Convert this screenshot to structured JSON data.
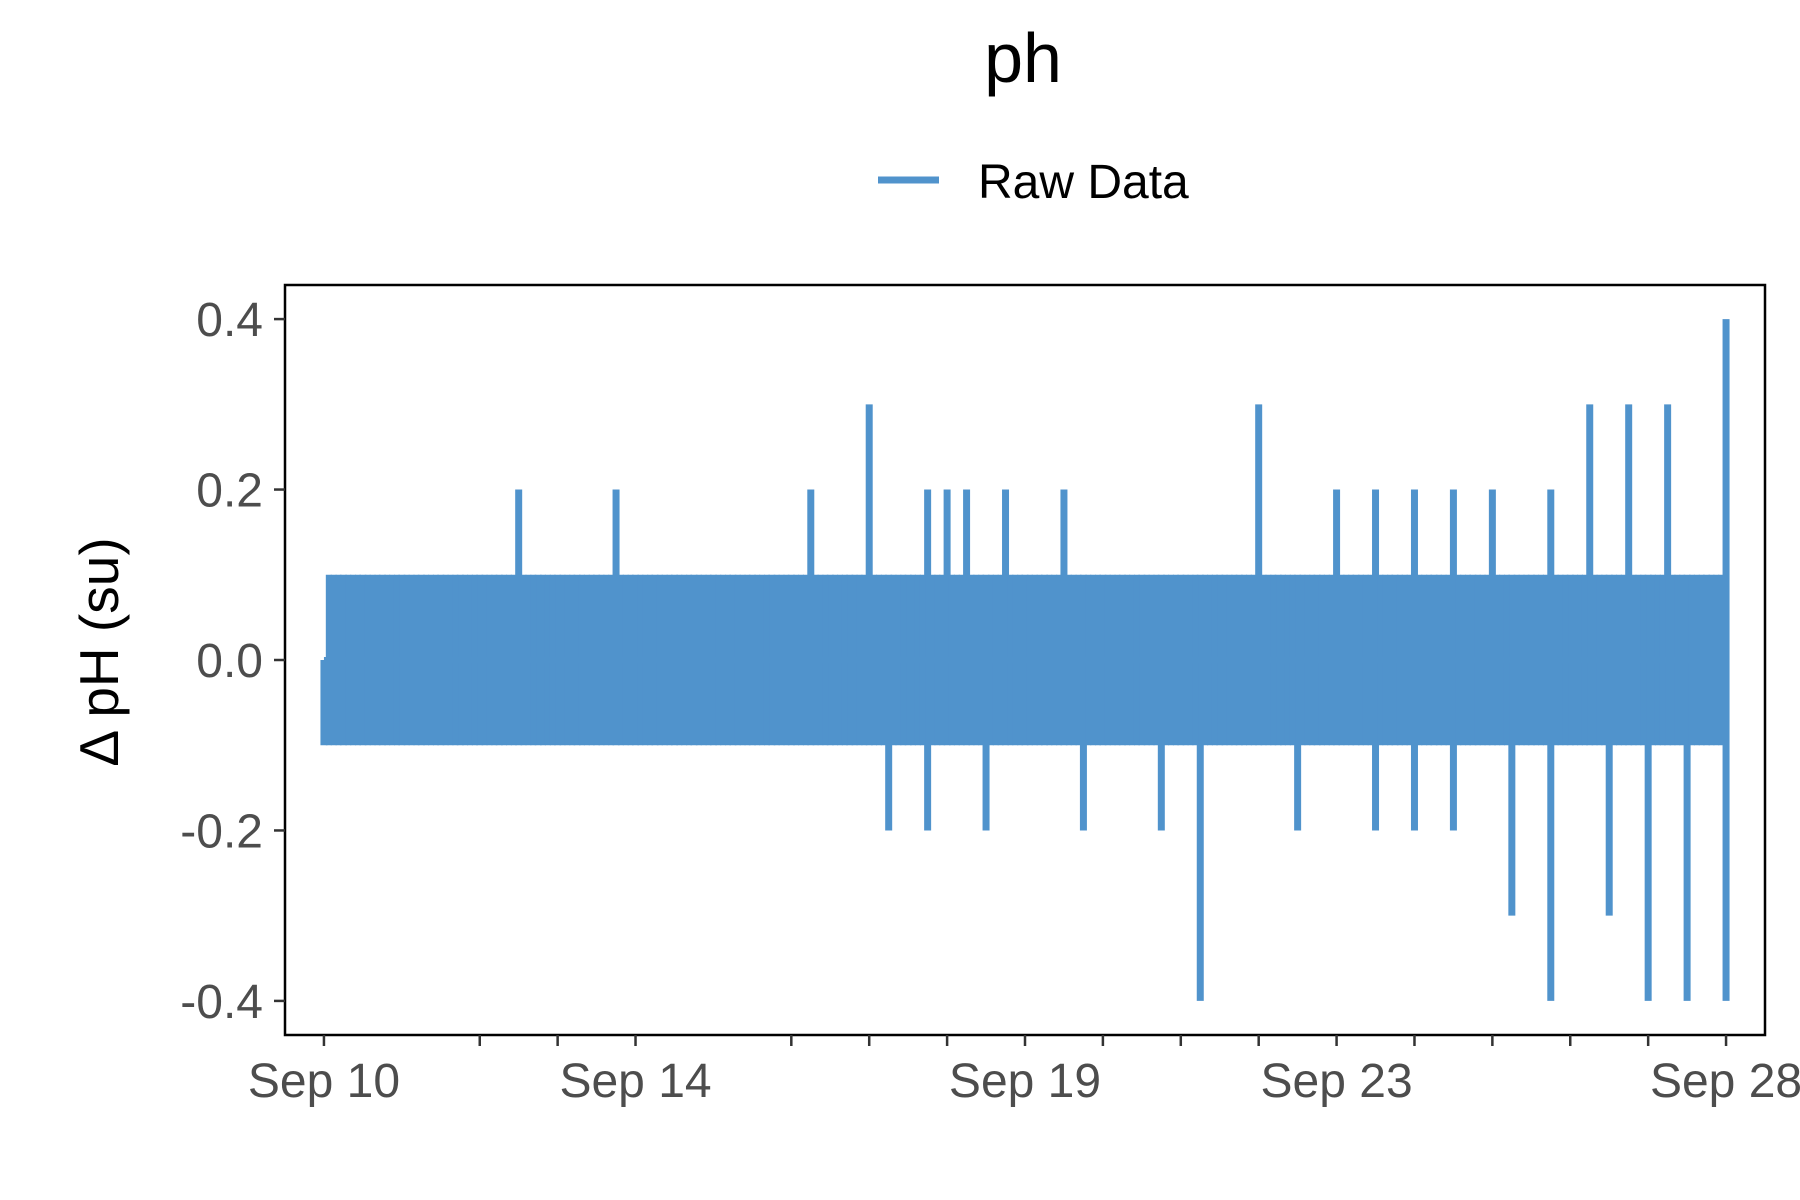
{
  "chart_data": {
    "type": "line",
    "title": "ph",
    "xlabel": "",
    "ylabel": "Δ pH (su)",
    "legend": {
      "placement": "top",
      "entries": [
        "Raw Data"
      ]
    },
    "grid": false,
    "x_scale": "date",
    "xlim": [
      "2019-09-09T12:00",
      "2019-09-28T12:00"
    ],
    "ylim": [
      -0.44,
      0.44
    ],
    "x_ticks": [
      {
        "date": "2019-09-10",
        "label": "Sep 10"
      },
      {
        "date": "2019-09-14",
        "label": "Sep 14"
      },
      {
        "date": "2019-09-19",
        "label": "Sep 19"
      },
      {
        "date": "2019-09-23",
        "label": "Sep 23"
      },
      {
        "date": "2019-09-28",
        "label": "Sep 28"
      }
    ],
    "x_minor_ticks": [
      "2019-09-12",
      "2019-09-13",
      "2019-09-16",
      "2019-09-17",
      "2019-09-18",
      "2019-09-20",
      "2019-09-21",
      "2019-09-22",
      "2019-09-24",
      "2019-09-25",
      "2019-09-26",
      "2019-09-27"
    ],
    "y_ticks": [
      0.4,
      0.2,
      0.0,
      -0.2,
      -0.4
    ],
    "y_tick_labels": [
      "0.4",
      "0.2",
      "0.0",
      "-0.2",
      "-0.4"
    ],
    "series": [
      {
        "name": "Raw Data",
        "color": "#5093cc",
        "x": [
          "2019-09-10T00:00",
          "2019-09-10T06:00",
          "2019-09-10T12:00",
          "2019-09-10T18:00",
          "2019-09-11T00:00",
          "2019-09-11T06:00",
          "2019-09-11T12:00",
          "2019-09-11T18:00",
          "2019-09-12T00:00",
          "2019-09-12T06:00",
          "2019-09-12T12:00",
          "2019-09-12T18:00",
          "2019-09-13T00:00",
          "2019-09-13T06:00",
          "2019-09-13T12:00",
          "2019-09-13T18:00",
          "2019-09-14T00:00",
          "2019-09-14T06:00",
          "2019-09-14T12:00",
          "2019-09-14T18:00",
          "2019-09-15T00:00",
          "2019-09-15T06:00",
          "2019-09-15T12:00",
          "2019-09-15T18:00",
          "2019-09-16T00:00",
          "2019-09-16T06:00",
          "2019-09-16T12:00",
          "2019-09-16T18:00",
          "2019-09-17T00:00",
          "2019-09-17T06:00",
          "2019-09-17T12:00",
          "2019-09-17T18:00",
          "2019-09-18T00:00",
          "2019-09-18T06:00",
          "2019-09-18T12:00",
          "2019-09-18T18:00",
          "2019-09-19T00:00",
          "2019-09-19T06:00",
          "2019-09-19T12:00",
          "2019-09-19T18:00",
          "2019-09-20T00:00",
          "2019-09-20T06:00",
          "2019-09-20T12:00",
          "2019-09-20T18:00",
          "2019-09-21T00:00",
          "2019-09-21T06:00",
          "2019-09-21T12:00",
          "2019-09-21T18:00",
          "2019-09-22T00:00",
          "2019-09-22T06:00",
          "2019-09-22T12:00",
          "2019-09-22T18:00",
          "2019-09-23T00:00",
          "2019-09-23T06:00",
          "2019-09-23T12:00",
          "2019-09-23T18:00",
          "2019-09-24T00:00",
          "2019-09-24T06:00",
          "2019-09-24T12:00",
          "2019-09-24T18:00",
          "2019-09-25T00:00",
          "2019-09-25T06:00",
          "2019-09-25T12:00",
          "2019-09-25T18:00",
          "2019-09-26T00:00",
          "2019-09-26T06:00",
          "2019-09-26T12:00",
          "2019-09-26T18:00",
          "2019-09-27T00:00",
          "2019-09-27T06:00",
          "2019-09-27T12:00",
          "2019-09-27T18:00",
          "2019-09-28T00:00"
        ],
        "y_max": [
          0.0,
          0.1,
          0.1,
          0.1,
          0.1,
          0.1,
          0.1,
          0.1,
          0.1,
          0.1,
          0.2,
          0.1,
          0.1,
          0.1,
          0.1,
          0.2,
          0.1,
          0.1,
          0.1,
          0.1,
          0.1,
          0.1,
          0.1,
          0.1,
          0.1,
          0.2,
          0.1,
          0.1,
          0.3,
          0.1,
          0.1,
          0.2,
          0.2,
          0.2,
          0.1,
          0.2,
          0.1,
          0.1,
          0.2,
          0.1,
          0.1,
          0.1,
          0.1,
          0.1,
          0.1,
          0.1,
          0.1,
          0.1,
          0.3,
          0.1,
          0.1,
          0.1,
          0.2,
          0.1,
          0.2,
          0.1,
          0.2,
          0.1,
          0.2,
          0.1,
          0.2,
          0.1,
          0.1,
          0.2,
          0.1,
          0.3,
          0.1,
          0.3,
          0.1,
          0.3,
          0.1,
          0.1,
          0.4
        ],
        "y_min": [
          -0.1,
          -0.1,
          -0.1,
          -0.1,
          -0.1,
          -0.1,
          -0.1,
          -0.1,
          -0.1,
          -0.1,
          -0.1,
          -0.1,
          -0.1,
          -0.1,
          -0.1,
          -0.1,
          -0.1,
          -0.1,
          -0.1,
          -0.1,
          -0.1,
          -0.1,
          -0.1,
          -0.1,
          -0.1,
          -0.1,
          -0.1,
          -0.1,
          -0.1,
          -0.2,
          -0.1,
          -0.2,
          -0.1,
          -0.1,
          -0.2,
          -0.1,
          -0.1,
          -0.1,
          -0.1,
          -0.2,
          -0.1,
          -0.1,
          -0.1,
          -0.2,
          -0.1,
          -0.4,
          -0.1,
          -0.1,
          -0.1,
          -0.1,
          -0.2,
          -0.1,
          -0.1,
          -0.1,
          -0.2,
          -0.1,
          -0.2,
          -0.1,
          -0.2,
          -0.1,
          -0.1,
          -0.3,
          -0.1,
          -0.4,
          -0.1,
          -0.1,
          -0.3,
          -0.1,
          -0.4,
          -0.1,
          -0.4,
          -0.1,
          -0.4
        ]
      }
    ]
  }
}
